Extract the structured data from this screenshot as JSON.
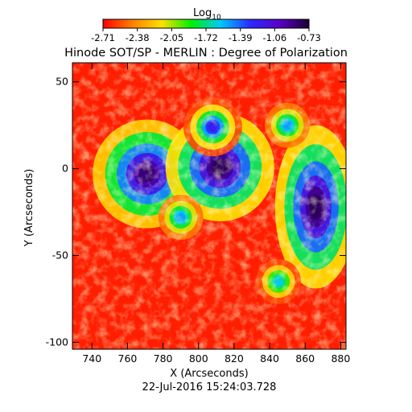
{
  "chart_data": {
    "type": "heatmap",
    "title": "Hinode SOT/SP - MERLIN : Degree of Polarization",
    "subtitle": "22-Jul-2016 15:24:03.728",
    "xlabel": "X (Arcseconds)",
    "ylabel": "Y (Arcseconds)",
    "xlim": [
      729,
      883
    ],
    "ylim": [
      -104,
      61
    ],
    "x_ticks": [
      740,
      760,
      780,
      800,
      820,
      840,
      860,
      880
    ],
    "y_ticks": [
      -100,
      -50,
      0,
      50
    ],
    "colorbar": {
      "label_base": "Log",
      "label_subscript": "10",
      "min": -2.71,
      "max": -0.73,
      "tick_labels": [
        "-2.71",
        "-2.38",
        "-2.05",
        "-1.72",
        "-1.39",
        "-1.06",
        "-0.73"
      ],
      "colormap_colors": [
        "#ff0000",
        "#ff8000",
        "#ffe000",
        "#00f000",
        "#00c8ff",
        "#2a2aff",
        "#5a00c8",
        "#1a0030"
      ]
    },
    "regions": [
      {
        "x": 771,
        "y": -3,
        "level": -0.85
      },
      {
        "x": 812,
        "y": 1,
        "level": -0.8
      },
      {
        "x": 866,
        "y": -22,
        "level": -0.8
      },
      {
        "x": 790,
        "y": -28,
        "level": -1.5
      },
      {
        "x": 808,
        "y": 24,
        "level": -1.2
      },
      {
        "x": 845,
        "y": -65,
        "level": -1.6
      },
      {
        "x": 850,
        "y": 25,
        "level": -1.5
      }
    ],
    "grid": false
  }
}
